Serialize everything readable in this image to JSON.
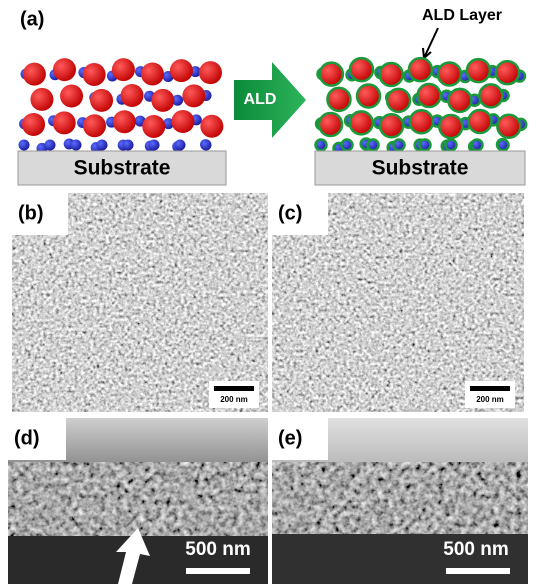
{
  "panel_a": {
    "label": "(a)",
    "ald_layer": "ALD Layer",
    "arrow_label": "ALD",
    "substrate_left": "Substrate",
    "substrate_right": "Substrate"
  },
  "panel_b": {
    "label": "(b)",
    "scale": "200 nm"
  },
  "panel_c": {
    "label": "(c)",
    "scale": "200 nm"
  },
  "panel_d": {
    "label": "(d)",
    "scale": "500 nm"
  },
  "panel_e": {
    "label": "(e)",
    "scale": "500 nm"
  }
}
